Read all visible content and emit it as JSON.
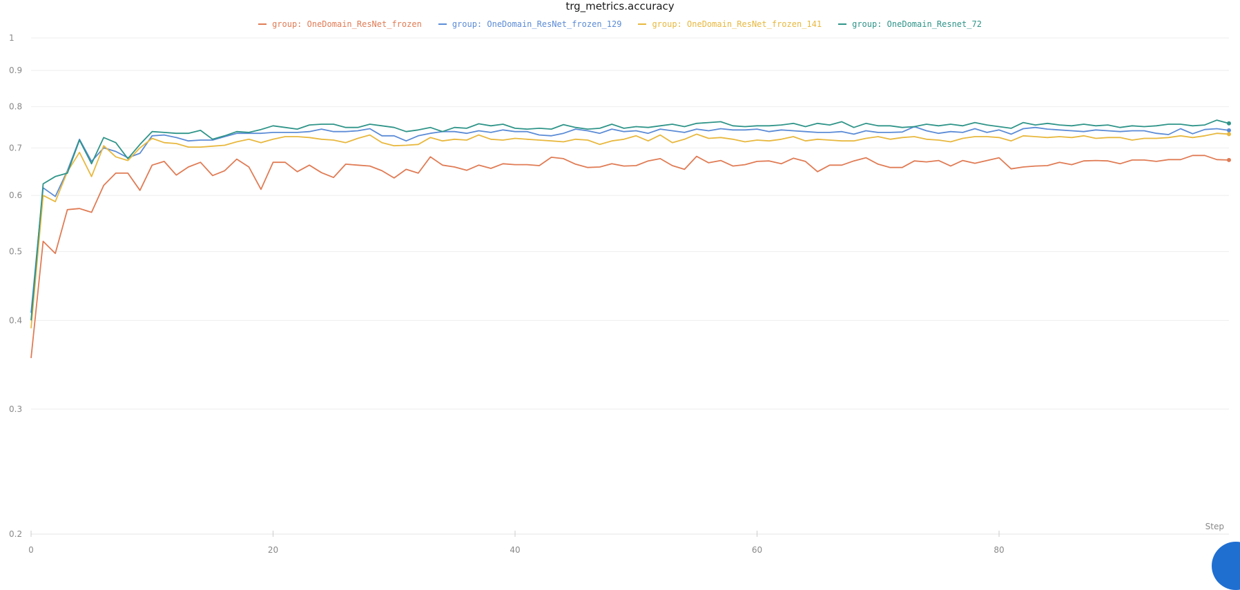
{
  "chart_data": {
    "type": "line",
    "title": "trg_metrics.accuracy",
    "xlabel": "Step",
    "ylabel": "",
    "y_scale": "log",
    "ylim": [
      0.2,
      1
    ],
    "xlim": [
      0,
      99
    ],
    "x_ticks": [
      0,
      20,
      40,
      60,
      80
    ],
    "y_ticks": [
      0.2,
      0.3,
      0.4,
      0.5,
      0.6,
      0.7,
      0.8,
      0.9,
      1
    ],
    "grid": true,
    "legend_position": "top-center",
    "series": [
      {
        "name": "group: OneDomain_ResNet_frozen",
        "color": "#e07b54",
        "values": [
          0.354,
          0.517,
          0.497,
          0.573,
          0.575,
          0.568,
          0.62,
          0.645,
          0.645,
          0.61,
          0.662,
          0.67,
          0.641,
          0.658,
          0.668,
          0.64,
          0.65,
          0.675,
          0.658,
          0.612,
          0.668,
          0.668,
          0.648,
          0.662,
          0.646,
          0.636,
          0.664,
          0.662,
          0.66,
          0.65,
          0.635,
          0.653,
          0.645,
          0.68,
          0.662,
          0.658,
          0.651,
          0.662,
          0.655,
          0.665,
          0.663,
          0.663,
          0.661,
          0.679,
          0.676,
          0.664,
          0.657,
          0.658,
          0.665,
          0.66,
          0.661,
          0.671,
          0.676,
          0.661,
          0.653,
          0.681,
          0.667,
          0.672,
          0.66,
          0.663,
          0.67,
          0.671,
          0.665,
          0.677,
          0.67,
          0.648,
          0.662,
          0.662,
          0.671,
          0.678,
          0.664,
          0.657,
          0.657,
          0.671,
          0.669,
          0.672,
          0.66,
          0.672,
          0.666,
          0.672,
          0.678,
          0.654,
          0.658,
          0.66,
          0.661,
          0.668,
          0.663,
          0.671,
          0.672,
          0.671,
          0.665,
          0.673,
          0.673,
          0.67,
          0.674,
          0.674,
          0.683,
          0.683,
          0.674,
          0.673
        ]
      },
      {
        "name": "group: OneDomain_ResNet_frozen_129",
        "color": "#5b8bd6",
        "values": [
          0.41,
          0.615,
          0.598,
          0.65,
          0.72,
          0.67,
          0.7,
          0.692,
          0.678,
          0.688,
          0.728,
          0.73,
          0.724,
          0.716,
          0.718,
          0.718,
          0.726,
          0.734,
          0.734,
          0.734,
          0.736,
          0.736,
          0.736,
          0.738,
          0.744,
          0.738,
          0.738,
          0.74,
          0.745,
          0.728,
          0.728,
          0.716,
          0.728,
          0.734,
          0.738,
          0.738,
          0.734,
          0.74,
          0.736,
          0.742,
          0.738,
          0.738,
          0.73,
          0.728,
          0.734,
          0.744,
          0.74,
          0.734,
          0.744,
          0.738,
          0.74,
          0.734,
          0.744,
          0.74,
          0.736,
          0.744,
          0.74,
          0.745,
          0.742,
          0.742,
          0.744,
          0.738,
          0.742,
          0.74,
          0.738,
          0.736,
          0.736,
          0.738,
          0.732,
          0.74,
          0.736,
          0.736,
          0.737,
          0.75,
          0.74,
          0.734,
          0.738,
          0.736,
          0.745,
          0.736,
          0.742,
          0.732,
          0.745,
          0.748,
          0.744,
          0.742,
          0.74,
          0.738,
          0.742,
          0.74,
          0.738,
          0.74,
          0.74,
          0.734,
          0.731,
          0.745,
          0.733,
          0.743,
          0.745,
          0.741
        ]
      },
      {
        "name": "group: OneDomain_ResNet_frozen_141",
        "color": "#e8b83e",
        "values": [
          0.39,
          0.6,
          0.588,
          0.648,
          0.69,
          0.638,
          0.705,
          0.68,
          0.672,
          0.7,
          0.722,
          0.712,
          0.71,
          0.702,
          0.702,
          0.704,
          0.706,
          0.714,
          0.72,
          0.712,
          0.72,
          0.726,
          0.726,
          0.724,
          0.72,
          0.718,
          0.712,
          0.722,
          0.73,
          0.712,
          0.705,
          0.706,
          0.708,
          0.724,
          0.716,
          0.72,
          0.718,
          0.73,
          0.72,
          0.718,
          0.722,
          0.72,
          0.718,
          0.716,
          0.714,
          0.72,
          0.718,
          0.708,
          0.716,
          0.72,
          0.728,
          0.716,
          0.73,
          0.712,
          0.72,
          0.732,
          0.722,
          0.724,
          0.72,
          0.714,
          0.718,
          0.716,
          0.72,
          0.726,
          0.716,
          0.72,
          0.718,
          0.716,
          0.716,
          0.722,
          0.726,
          0.72,
          0.724,
          0.726,
          0.72,
          0.718,
          0.714,
          0.722,
          0.726,
          0.726,
          0.724,
          0.716,
          0.728,
          0.726,
          0.724,
          0.726,
          0.724,
          0.728,
          0.722,
          0.724,
          0.724,
          0.718,
          0.722,
          0.722,
          0.724,
          0.728,
          0.724,
          0.728,
          0.734,
          0.732
        ]
      },
      {
        "name": "group: OneDomain_Resnet_72",
        "color": "#2e9488",
        "values": [
          0.4,
          0.623,
          0.638,
          0.645,
          0.718,
          0.665,
          0.724,
          0.712,
          0.676,
          0.708,
          0.738,
          0.736,
          0.734,
          0.734,
          0.741,
          0.72,
          0.728,
          0.738,
          0.736,
          0.743,
          0.752,
          0.748,
          0.744,
          0.754,
          0.756,
          0.756,
          0.748,
          0.748,
          0.756,
          0.752,
          0.748,
          0.738,
          0.742,
          0.748,
          0.738,
          0.748,
          0.746,
          0.757,
          0.752,
          0.756,
          0.746,
          0.744,
          0.746,
          0.744,
          0.755,
          0.748,
          0.744,
          0.746,
          0.756,
          0.746,
          0.75,
          0.748,
          0.752,
          0.756,
          0.75,
          0.758,
          0.76,
          0.762,
          0.752,
          0.75,
          0.752,
          0.752,
          0.754,
          0.758,
          0.75,
          0.758,
          0.754,
          0.762,
          0.748,
          0.758,
          0.752,
          0.752,
          0.748,
          0.75,
          0.756,
          0.752,
          0.756,
          0.752,
          0.76,
          0.754,
          0.75,
          0.746,
          0.76,
          0.754,
          0.758,
          0.754,
          0.752,
          0.756,
          0.752,
          0.754,
          0.748,
          0.752,
          0.75,
          0.752,
          0.756,
          0.756,
          0.752,
          0.754,
          0.766,
          0.758
        ]
      }
    ]
  },
  "legend_marker": "—",
  "corner_button": {
    "color": "#1f6fd1"
  }
}
